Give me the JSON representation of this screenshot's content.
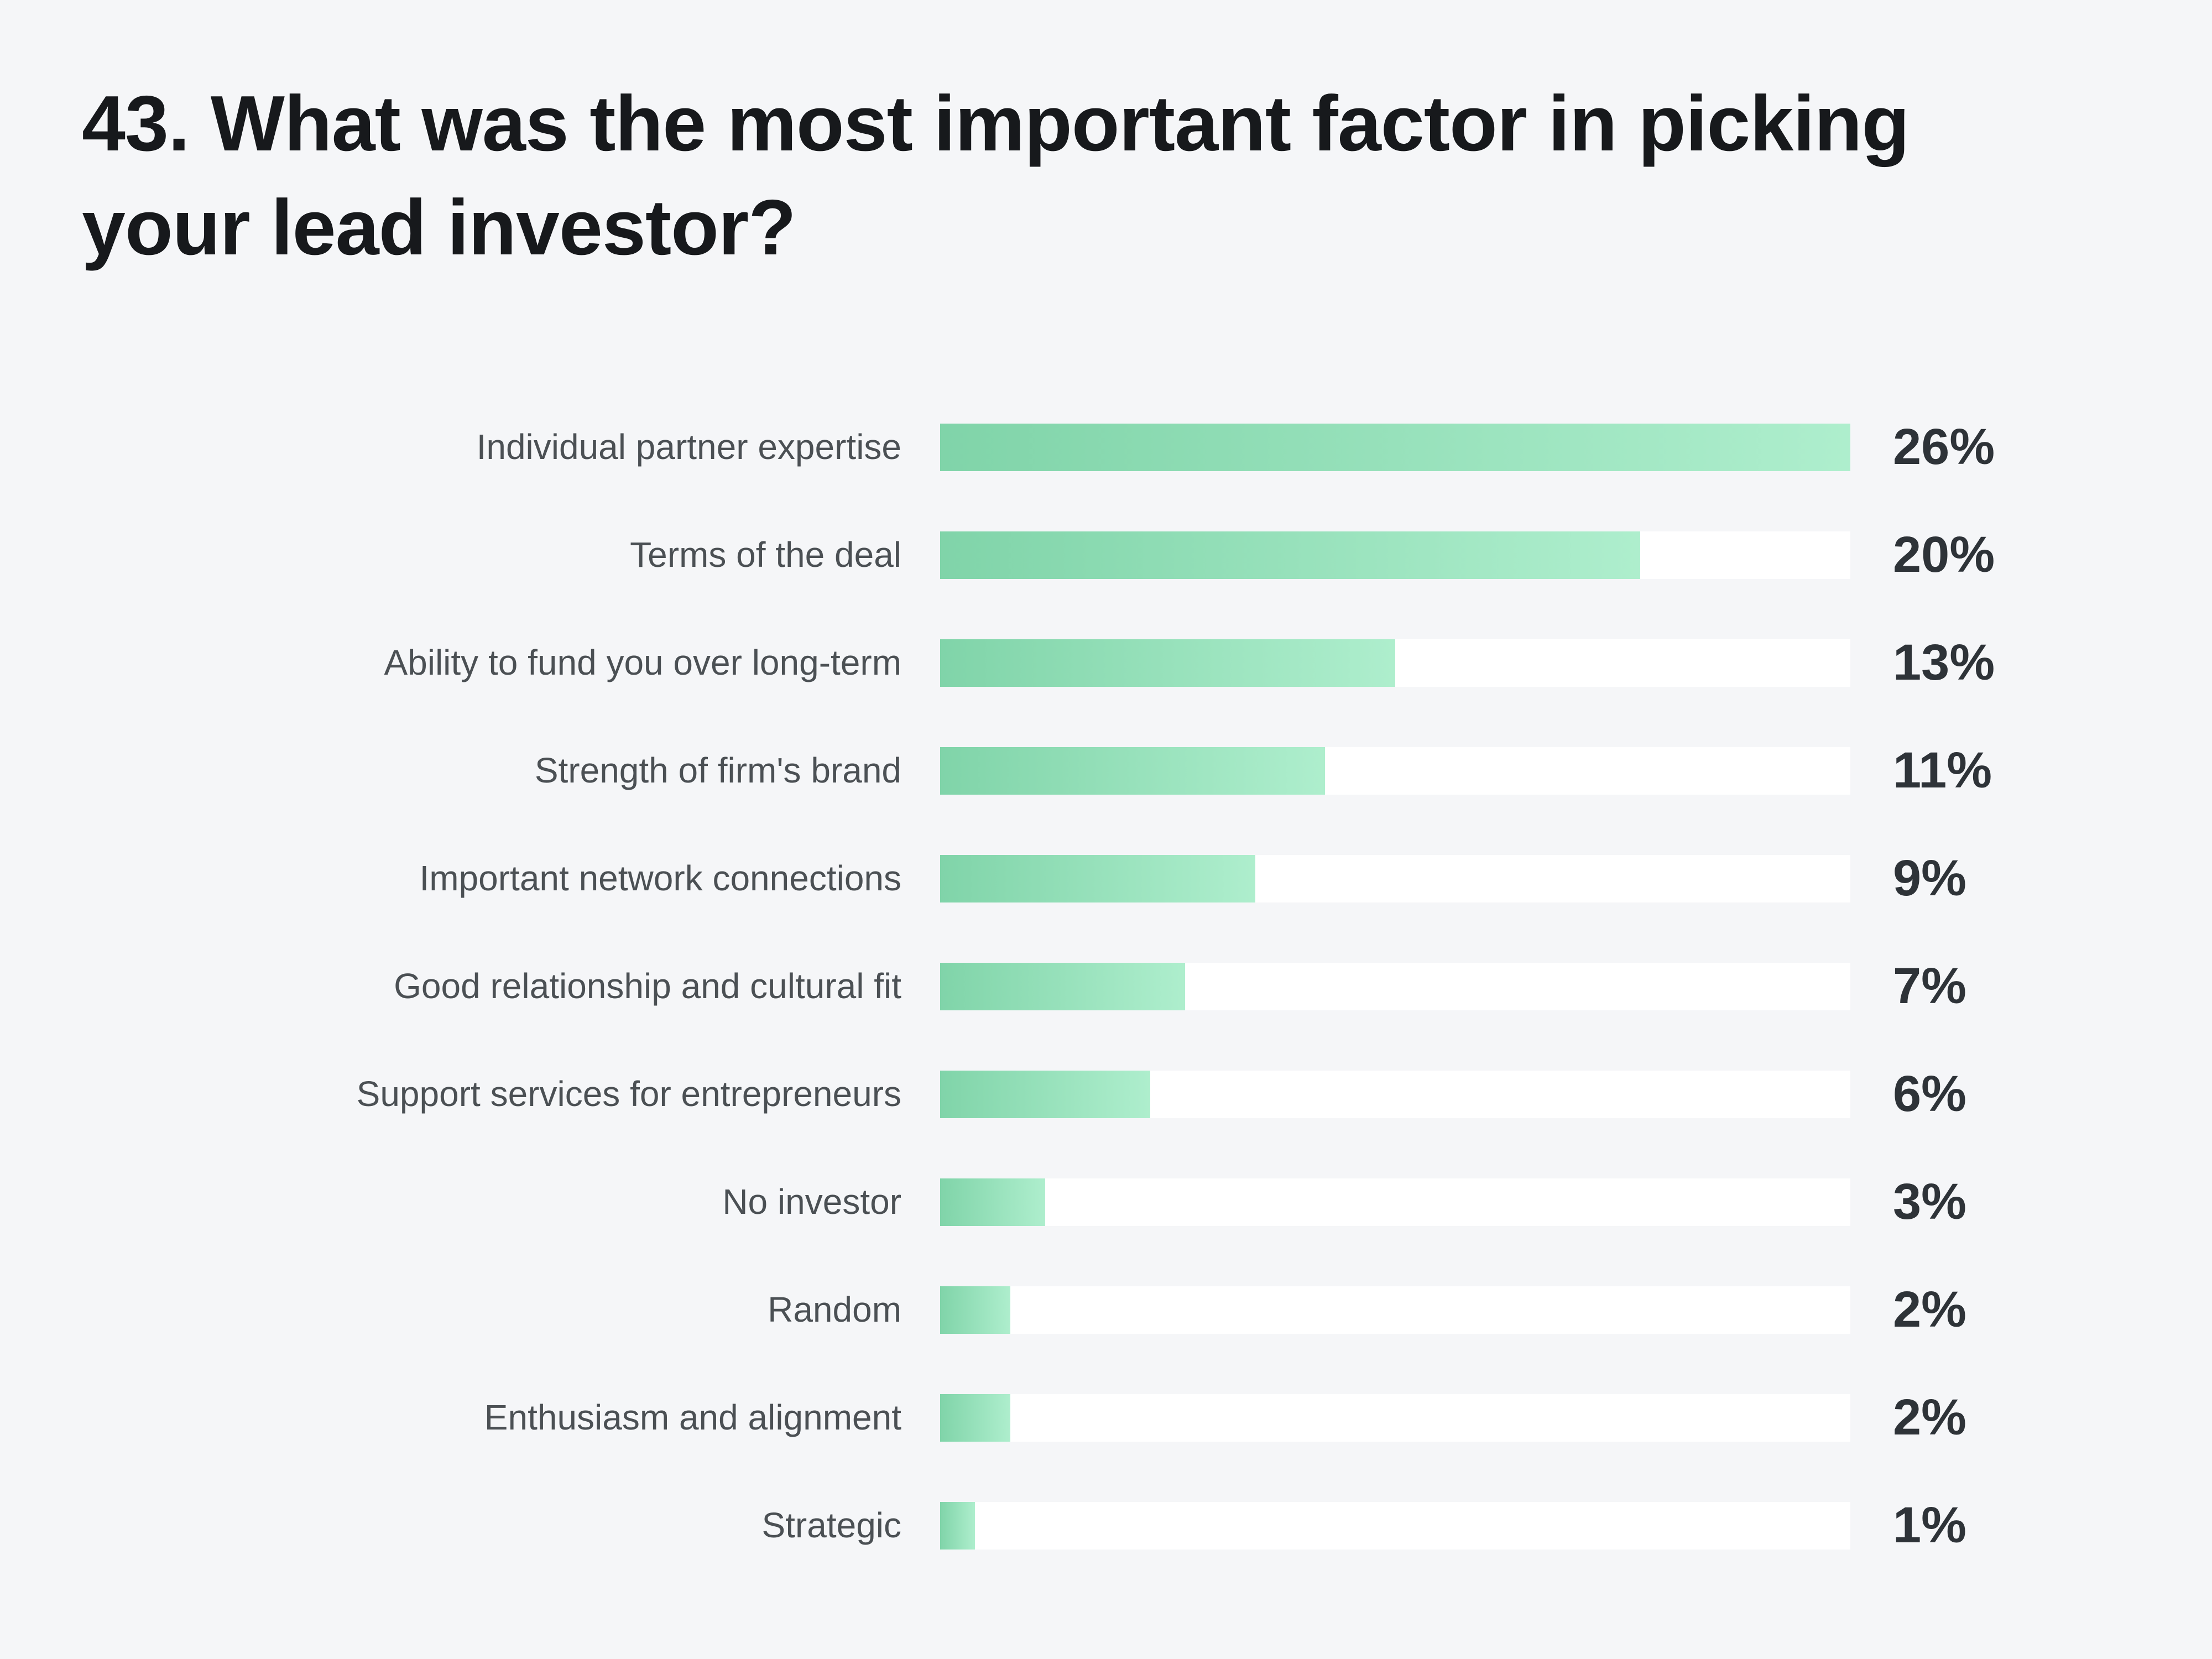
{
  "header": {
    "title": "43. What was the most important factor in picking your lead investor?",
    "title_lines": [
      "43. What was the most important factor in picking",
      "your lead investor?"
    ]
  },
  "chart_data": {
    "type": "bar",
    "orientation": "horizontal",
    "title": "43. What was the most important factor in picking your lead investor?",
    "categories": [
      "Individual partner expertise",
      "Terms of the deal",
      "Ability to fund you over long-term",
      "Strength of firm's brand",
      "Important network connections",
      "Good relationship and cultural fit",
      "Support services for entrepreneurs",
      "No investor",
      "Random",
      "Enthusiasm and alignment",
      "Strategic"
    ],
    "values": [
      26,
      20,
      13,
      11,
      9,
      7,
      6,
      3,
      2,
      2,
      1
    ],
    "value_labels": [
      "26%",
      "20%",
      "13%",
      "11%",
      "9%",
      "7%",
      "6%",
      "3%",
      "2%",
      "2%",
      "1%"
    ],
    "unit": "%",
    "xlim": [
      0,
      26
    ],
    "grid": false,
    "legend": false,
    "xlabel": "",
    "ylabel": "",
    "colors": {
      "background": "#f5f6f8",
      "track": "#ffffff",
      "bar_gradient_start": "#80d4a9",
      "bar_gradient_end": "#aeeecd",
      "title_text": "#17191c",
      "label_text": "#4b5054",
      "value_text": "#2e3338"
    }
  }
}
